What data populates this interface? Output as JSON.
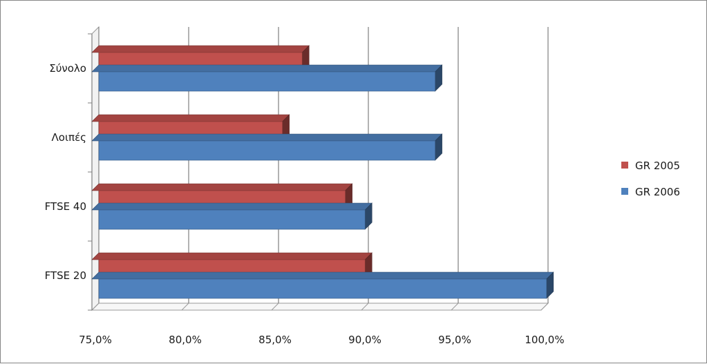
{
  "chart_data": {
    "type": "bar",
    "orientation": "horizontal",
    "categories": [
      "Σύνολο",
      "Λοιπές",
      "FTSE 40",
      "FTSE 20"
    ],
    "series": [
      {
        "name": "GR 2005",
        "color": "#c0504d",
        "values": [
          86.7,
          85.6,
          89.1,
          90.2
        ]
      },
      {
        "name": "GR 2006",
        "color": "#4f81bd",
        "values": [
          94.1,
          94.1,
          90.2,
          100.3
        ]
      }
    ],
    "xlim": [
      75,
      100
    ],
    "xticks": [
      "75,0%",
      "80,0%",
      "85,0%",
      "90,0%",
      "95,0%",
      "100,0%"
    ],
    "xtick_values": [
      75,
      80,
      85,
      90,
      95,
      100
    ],
    "title": "",
    "xlabel": "",
    "ylabel": "",
    "grid": true,
    "legend_position": "right",
    "style": "3d-bar"
  }
}
